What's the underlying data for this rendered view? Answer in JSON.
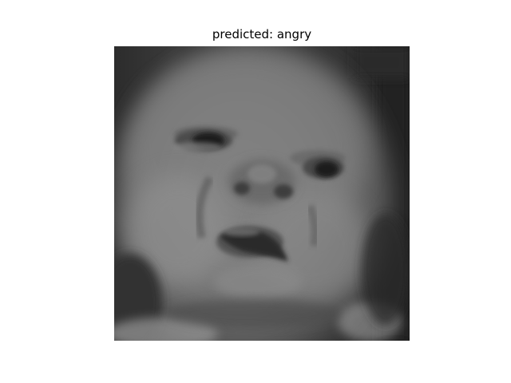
{
  "figure": {
    "title": "predicted: angry"
  },
  "image": {
    "subject": "grayscale photo of a baby's face",
    "colors": {
      "background_dark": "#262626",
      "skin_mid": "#6e6e6e",
      "skin_light": "#8a8a8a",
      "shadow": "#2e2e2e"
    }
  }
}
